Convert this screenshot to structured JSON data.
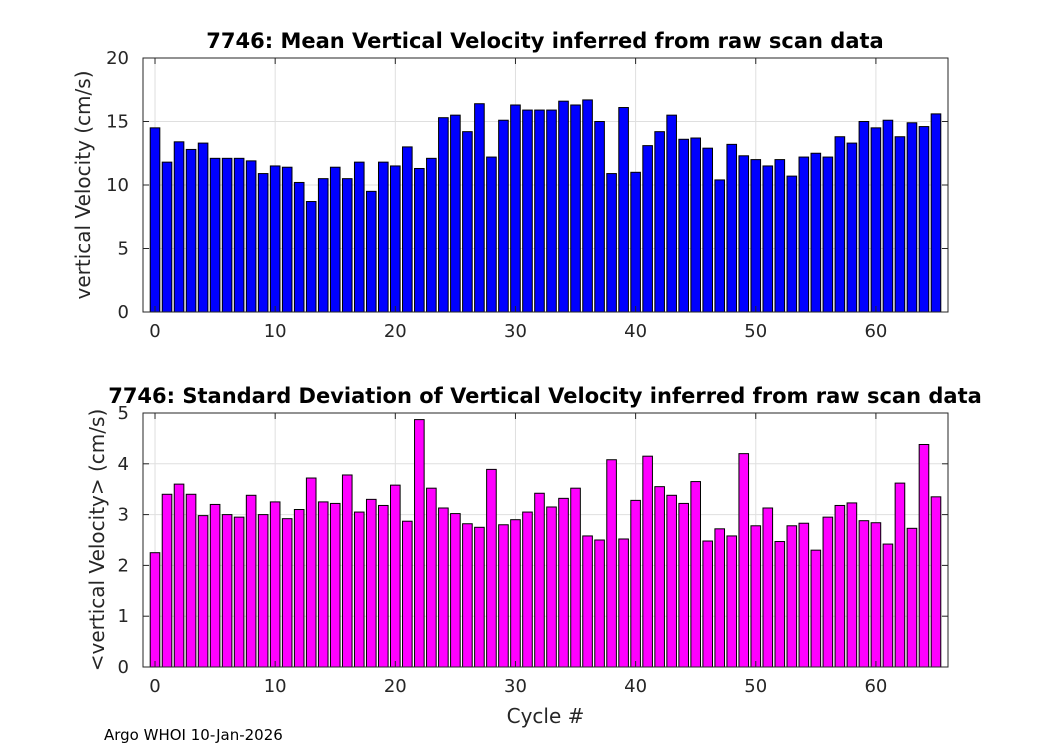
{
  "chart_data": [
    {
      "type": "bar",
      "title": "7746: Mean Vertical Velocity inferred from raw scan data",
      "xlabel": "",
      "ylabel": "vertical Velocity (cm/s)",
      "xlim": [
        -1,
        66
      ],
      "ylim": [
        0,
        20
      ],
      "xticks": [
        0,
        10,
        20,
        30,
        40,
        50,
        60
      ],
      "yticks": [
        0,
        5,
        10,
        15,
        20
      ],
      "grid": true,
      "color": "#0000ff",
      "x": [
        0,
        1,
        2,
        3,
        4,
        5,
        6,
        7,
        8,
        9,
        10,
        11,
        12,
        13,
        14,
        15,
        16,
        17,
        18,
        19,
        20,
        21,
        22,
        23,
        24,
        25,
        26,
        27,
        28,
        29,
        30,
        31,
        32,
        33,
        34,
        35,
        36,
        37,
        38,
        39,
        40,
        41,
        42,
        43,
        44,
        45,
        46,
        47,
        48,
        49,
        50,
        51,
        52,
        53,
        54,
        55,
        56,
        57,
        58,
        59,
        60,
        61,
        62,
        63,
        64,
        65
      ],
      "values": [
        14.5,
        11.8,
        13.4,
        12.8,
        13.3,
        12.1,
        12.1,
        12.1,
        11.9,
        10.9,
        11.5,
        11.4,
        10.2,
        8.7,
        10.5,
        11.4,
        10.5,
        11.8,
        9.5,
        11.8,
        11.5,
        13.0,
        11.3,
        12.1,
        15.3,
        15.5,
        14.2,
        16.4,
        12.2,
        15.1,
        16.3,
        15.9,
        15.9,
        15.9,
        16.6,
        16.3,
        16.7,
        15.0,
        10.9,
        16.1,
        11.0,
        13.1,
        14.2,
        15.5,
        13.6,
        13.7,
        12.9,
        10.4,
        13.2,
        12.3,
        12.0,
        11.5,
        12.0,
        10.7,
        12.2,
        12.5,
        12.2,
        13.8,
        13.3,
        15.0,
        14.5,
        15.1,
        13.8,
        14.9,
        14.6,
        15.6
      ]
    },
    {
      "type": "bar",
      "title": "7746: Standard Deviation of Vertical Velocity inferred from raw scan data",
      "xlabel": "Cycle #",
      "ylabel": "<vertical Velocity> (cm/s)",
      "xlim": [
        -1,
        66
      ],
      "ylim": [
        0,
        5
      ],
      "xticks": [
        0,
        10,
        20,
        30,
        40,
        50,
        60
      ],
      "yticks": [
        0,
        1,
        2,
        3,
        4,
        5
      ],
      "grid": true,
      "color": "#ff00ff",
      "x": [
        0,
        1,
        2,
        3,
        4,
        5,
        6,
        7,
        8,
        9,
        10,
        11,
        12,
        13,
        14,
        15,
        16,
        17,
        18,
        19,
        20,
        21,
        22,
        23,
        24,
        25,
        26,
        27,
        28,
        29,
        30,
        31,
        32,
        33,
        34,
        35,
        36,
        37,
        38,
        39,
        40,
        41,
        42,
        43,
        44,
        45,
        46,
        47,
        48,
        49,
        50,
        51,
        52,
        53,
        54,
        55,
        56,
        57,
        58,
        59,
        60,
        61,
        62,
        63,
        64,
        65
      ],
      "values": [
        2.25,
        3.4,
        3.6,
        3.4,
        2.98,
        3.2,
        3.0,
        2.95,
        3.38,
        3.0,
        3.25,
        2.92,
        3.1,
        3.72,
        3.25,
        3.22,
        3.78,
        3.05,
        3.3,
        3.18,
        3.58,
        2.87,
        4.87,
        3.52,
        3.13,
        3.02,
        2.82,
        2.75,
        3.89,
        2.8,
        2.9,
        3.05,
        3.42,
        3.15,
        3.32,
        3.52,
        2.58,
        2.5,
        4.08,
        2.52,
        3.28,
        4.15,
        3.55,
        3.38,
        3.22,
        3.65,
        2.48,
        2.72,
        2.58,
        4.2,
        2.78,
        3.13,
        2.47,
        2.78,
        2.83,
        2.3,
        2.95,
        3.18,
        3.23,
        2.88,
        2.84,
        2.42,
        3.62,
        2.73,
        4.38,
        3.35
      ]
    }
  ],
  "footer": "Argo WHOI 10-Jan-2026"
}
